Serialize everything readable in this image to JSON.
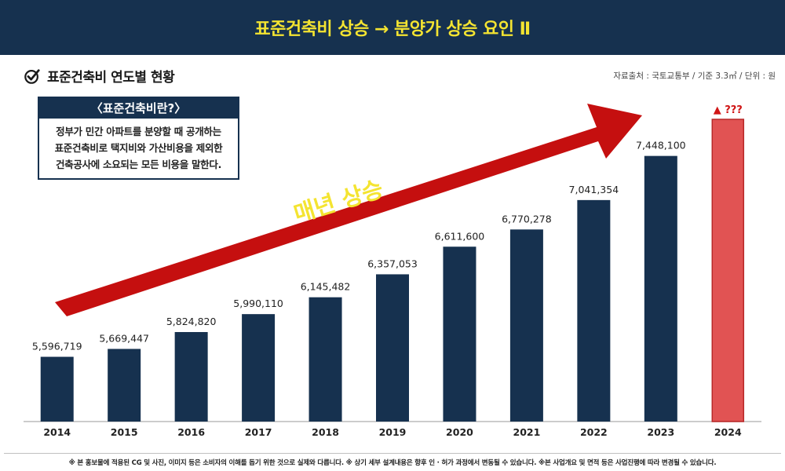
{
  "banner": {
    "title": "표준건축비 상승 → 분양가 상승 요인 Ⅱ"
  },
  "subhead": {
    "title": "표준건축비 연도별 현황",
    "icon": "check-circle-icon"
  },
  "source": "자료출처 : 국토교통부 / 기준 3.3㎡ / 단위 : 원",
  "info_box": {
    "title": "〈표준건축비란?〉",
    "lines": [
      "정부가 민간 아파트를 분양할 때 공개하는",
      "표준건축비로 택지비와 가산비용을 제외한",
      "건축공사에 소요되는 모든 비용을 말한다."
    ]
  },
  "arrow_label": "매년 상승",
  "footer": "※ 본 홍보물에 적용된 CG 및 사진, 이미지 등은 소비자의 이해를 돕기 위한 것으로 실제와 다릅니다. ※ 상기 세부 설계내용은 향후 인 · 허가 과정에서 변동될 수 있습니다. ※본 사업개요 및 면적 등은 사업진행에 따라 변경될 수 있습니다.",
  "colors": {
    "banner_bg": "#16314f",
    "banner_text": "#f4e431",
    "bar": "#16314f",
    "highlight_bar": "#e04a4a",
    "arrow": "#c50f0f",
    "arrow_text": "#f4e431"
  },
  "chart_data": {
    "type": "bar",
    "categories": [
      "2014",
      "2015",
      "2016",
      "2017",
      "2018",
      "2019",
      "2020",
      "2021",
      "2022",
      "2023",
      "2024"
    ],
    "values": [
      5596719,
      5669447,
      5824820,
      5990110,
      6145482,
      6357053,
      6611600,
      6770278,
      7041354,
      7448100,
      null
    ],
    "value_labels": [
      "5,596,719",
      "5,669,447",
      "5,824,820",
      "5,990,110",
      "6,145,482",
      "6,357,053",
      "6,611,600",
      "6,770,278",
      "7,041,354",
      "7,448,100",
      "▲ ???"
    ],
    "highlight_index": 10,
    "highlight_note": "▲ ???",
    "ylim": [
      5000000,
      7800000
    ],
    "title": "",
    "xlabel": "",
    "ylabel": "",
    "grid": false,
    "legend": "none"
  }
}
